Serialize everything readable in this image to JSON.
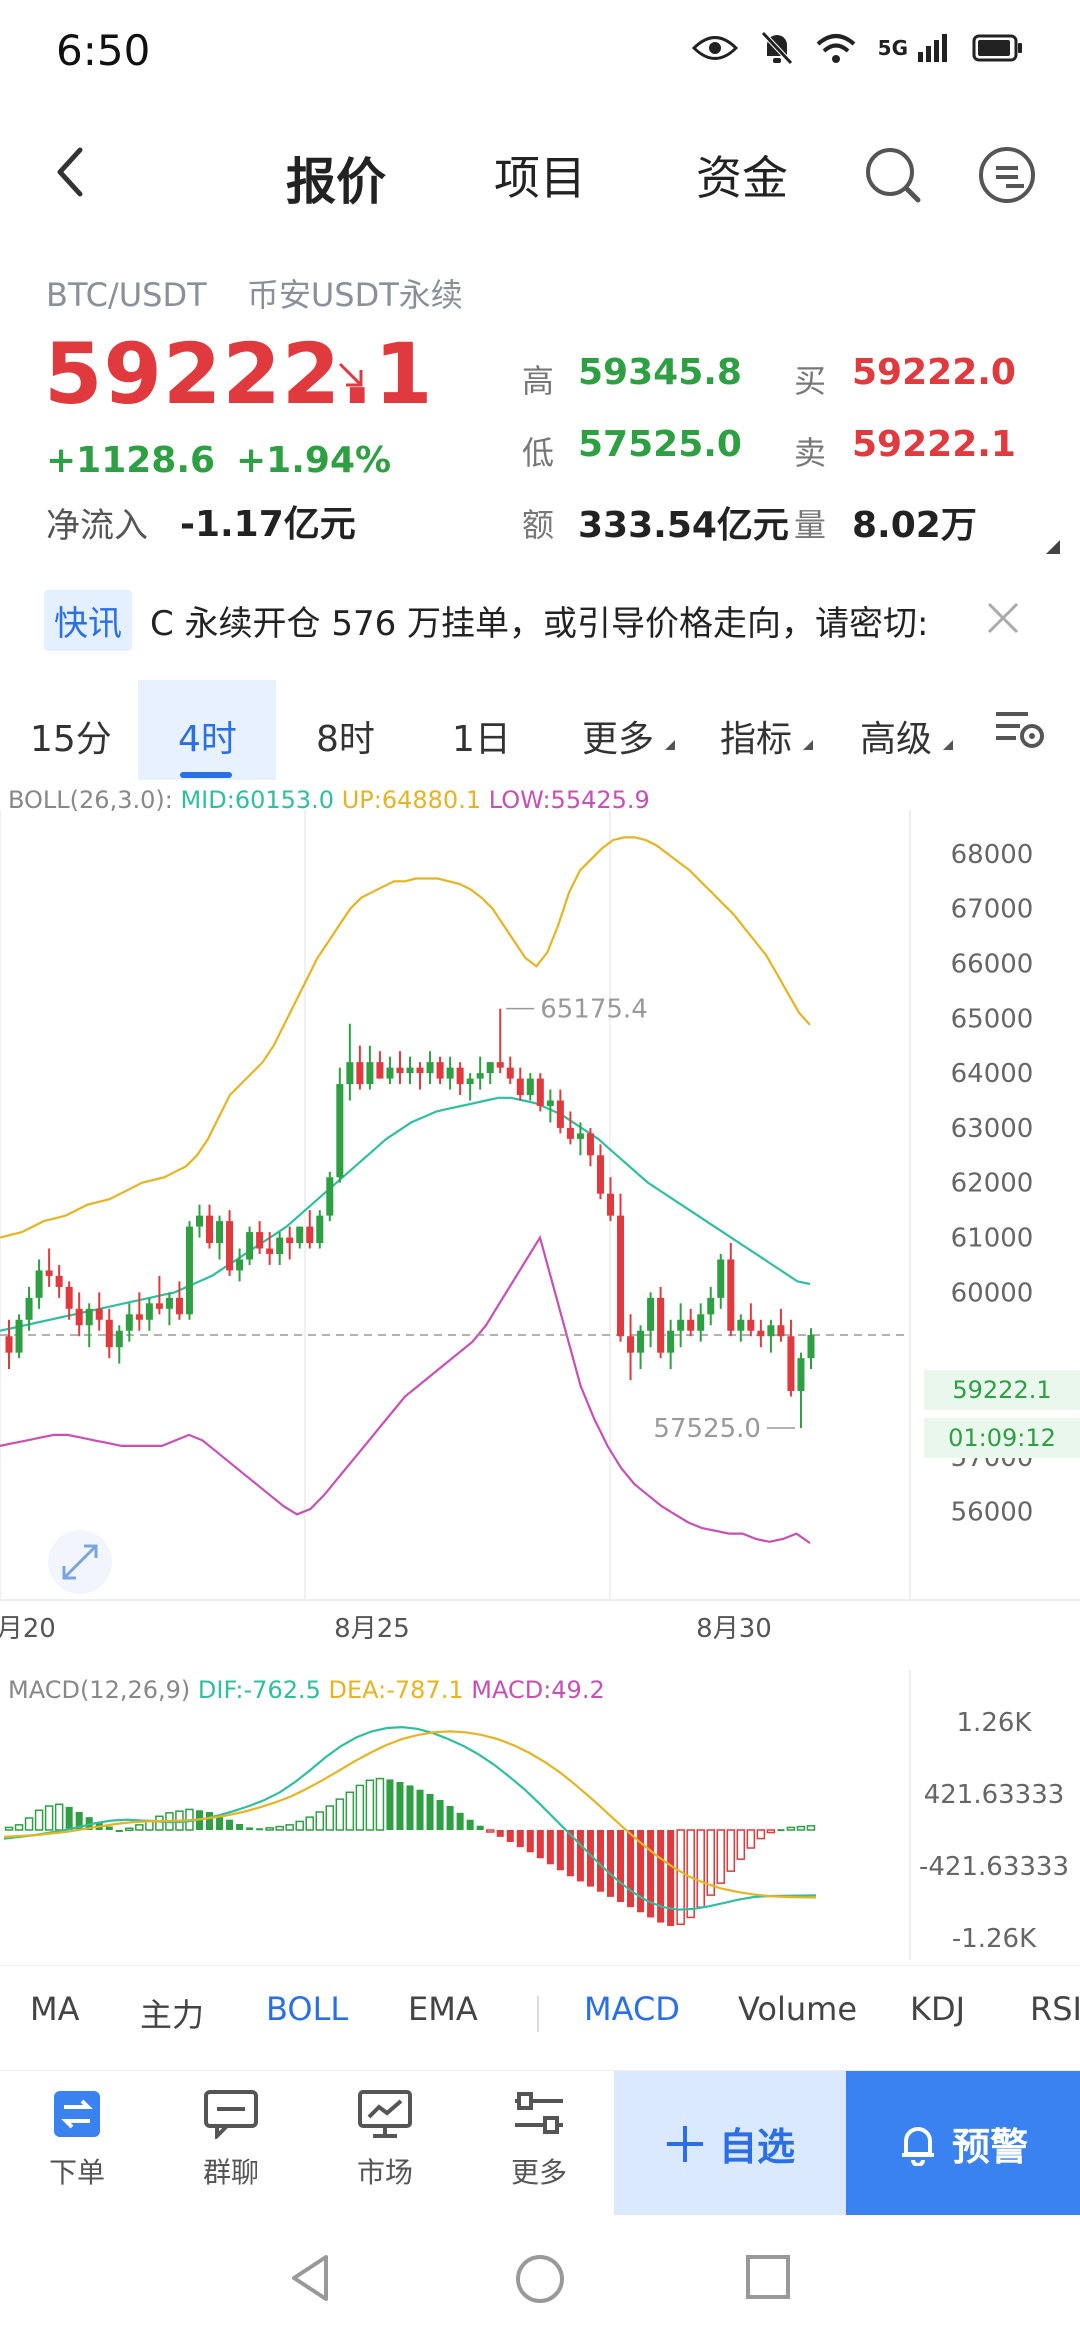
{
  "status_bar": {
    "time": "6:50",
    "network": "5G"
  },
  "nav": {
    "tabs": [
      "报价",
      "项目",
      "资金"
    ],
    "active_tab": 0
  },
  "ticker": {
    "pair": "BTC/USDT",
    "market": "币安USDT永续",
    "price": "59222.1",
    "change": "+1128.6",
    "change_pct": "+1.94%",
    "netflow_label": "净流入",
    "netflow_value": "-1.17亿元"
  },
  "stats": [
    {
      "label": "高",
      "value": "59345.8",
      "color": "green"
    },
    {
      "label": "买",
      "value": "59222.0",
      "color": "red"
    },
    {
      "label": "低",
      "value": "57525.0",
      "color": "green"
    },
    {
      "label": "卖",
      "value": "59222.1",
      "color": "red"
    },
    {
      "label": "额",
      "value": "333.54亿元",
      "color": "dark"
    },
    {
      "label": "量",
      "value": "8.02万",
      "color": "dark"
    }
  ],
  "news": {
    "tag": "快讯",
    "text": "C 永续开仓 576 万挂单，或引导价格走向，请密切:"
  },
  "timeframes": [
    "15分",
    "4时",
    "8时",
    "1日",
    "更多",
    "指标",
    "高级"
  ],
  "active_timeframe": 1,
  "boll_legend": {
    "name": "BOLL(26,3.0):",
    "mid": "MID:60153.0",
    "up": "UP:64880.1",
    "low": "LOW:55425.9"
  },
  "macd_legend": {
    "name": "MACD(12,26,9)",
    "dif": "DIF:-762.5",
    "dea": "DEA:-787.1",
    "macd": "MACD:49.2"
  },
  "current_price_tag": "59222.1",
  "countdown_tag": "01:09:12",
  "chart_data": [
    {
      "type": "candlestick",
      "title": "BTC/USDT 4时",
      "x_ticks": [
        "8月20",
        "8月25",
        "8月30"
      ],
      "y_ticks": [
        68000,
        67000,
        66000,
        65000,
        64000,
        63000,
        62000,
        61000,
        60000,
        57000,
        56000
      ],
      "ylim": [
        55300,
        68800
      ],
      "annotations": {
        "high": "65175.4",
        "low": "57525.0"
      },
      "current_price": 59222.1,
      "candles": [
        [
          59200,
          59500,
          58600,
          58900
        ],
        [
          58900,
          59600,
          58800,
          59500
        ],
        [
          59500,
          60100,
          59300,
          59900
        ],
        [
          59900,
          60600,
          59700,
          60400
        ],
        [
          60400,
          60800,
          60100,
          60300
        ],
        [
          60300,
          60500,
          59900,
          60100
        ],
        [
          60100,
          60200,
          59500,
          59700
        ],
        [
          59700,
          60000,
          59200,
          59400
        ],
        [
          59400,
          59800,
          59000,
          59700
        ],
        [
          59700,
          60000,
          59300,
          59500
        ],
        [
          59500,
          59700,
          58800,
          59000
        ],
        [
          59000,
          59400,
          58700,
          59300
        ],
        [
          59300,
          59800,
          59100,
          59600
        ],
        [
          59600,
          60000,
          59300,
          59500
        ],
        [
          59500,
          59900,
          59300,
          59800
        ],
        [
          59800,
          60300,
          59600,
          59700
        ],
        [
          59700,
          60000,
          59400,
          59900
        ],
        [
          59900,
          60200,
          59500,
          59600
        ],
        [
          59600,
          61300,
          59500,
          61200
        ],
        [
          61200,
          61600,
          61000,
          61400
        ],
        [
          61400,
          61600,
          60800,
          60900
        ],
        [
          60900,
          61400,
          60600,
          61300
        ],
        [
          61300,
          61500,
          60300,
          60400
        ],
        [
          60400,
          60800,
          60200,
          60600
        ],
        [
          60600,
          61200,
          60500,
          61100
        ],
        [
          61100,
          61300,
          60700,
          60800
        ],
        [
          60800,
          61100,
          60500,
          60700
        ],
        [
          60700,
          61100,
          60500,
          61000
        ],
        [
          61000,
          61200,
          60600,
          60900
        ],
        [
          60900,
          61200,
          60800,
          61200
        ],
        [
          61200,
          61500,
          60800,
          60900
        ],
        [
          60900,
          61500,
          60800,
          61400
        ],
        [
          61400,
          62200,
          61300,
          62100
        ],
        [
          62100,
          64100,
          62000,
          63800
        ],
        [
          63800,
          64900,
          63500,
          64200
        ],
        [
          64200,
          64500,
          63700,
          63800
        ],
        [
          63800,
          64500,
          63700,
          64200
        ],
        [
          64200,
          64400,
          63900,
          63900
        ],
        [
          63900,
          64300,
          63800,
          64100
        ],
        [
          64100,
          64400,
          63800,
          64000
        ],
        [
          64000,
          64300,
          63800,
          64100
        ],
        [
          64100,
          64200,
          63700,
          64000
        ],
        [
          64000,
          64400,
          63800,
          64200
        ],
        [
          64200,
          64300,
          63800,
          63900
        ],
        [
          63900,
          64300,
          63700,
          64100
        ],
        [
          64100,
          64200,
          63600,
          63800
        ],
        [
          63800,
          64000,
          63500,
          63900
        ],
        [
          63900,
          64300,
          63700,
          64000
        ],
        [
          64000,
          64200,
          63800,
          64200
        ],
        [
          64200,
          65175,
          64000,
          64100
        ],
        [
          64100,
          64300,
          63800,
          63900
        ],
        [
          63900,
          64100,
          63500,
          63600
        ],
        [
          63600,
          64000,
          63500,
          63900
        ],
        [
          63900,
          64000,
          63300,
          63400
        ],
        [
          63400,
          63700,
          63100,
          63500
        ],
        [
          63500,
          63700,
          62900,
          63000
        ],
        [
          63000,
          63300,
          62700,
          62800
        ],
        [
          62800,
          63100,
          62500,
          62900
        ],
        [
          62900,
          63000,
          62300,
          62500
        ],
        [
          62500,
          62700,
          61700,
          61800
        ],
        [
          61800,
          62100,
          61300,
          61400
        ],
        [
          61400,
          61800,
          59100,
          59200
        ],
        [
          59200,
          59600,
          58400,
          58900
        ],
        [
          58900,
          59400,
          58600,
          59300
        ],
        [
          59300,
          60000,
          59000,
          59900
        ],
        [
          59900,
          60100,
          58800,
          58900
        ],
        [
          58900,
          59500,
          58600,
          59300
        ],
        [
          59300,
          59800,
          59000,
          59500
        ],
        [
          59500,
          59700,
          59200,
          59300
        ],
        [
          59300,
          59800,
          59100,
          59600
        ],
        [
          59600,
          60100,
          59400,
          59900
        ],
        [
          59900,
          60700,
          59700,
          60600
        ],
        [
          60600,
          60900,
          59200,
          59300
        ],
        [
          59300,
          59600,
          59100,
          59500
        ],
        [
          59500,
          59800,
          59200,
          59300
        ],
        [
          59300,
          59500,
          59000,
          59200
        ],
        [
          59200,
          59500,
          58900,
          59400
        ],
        [
          59400,
          59700,
          59100,
          59200
        ],
        [
          59200,
          59500,
          58100,
          58200
        ],
        [
          58200,
          58900,
          57525,
          58800
        ],
        [
          58800,
          59346,
          58600,
          59222
        ]
      ],
      "boll_up": [
        61000,
        61050,
        61100,
        61200,
        61300,
        61350,
        61400,
        61500,
        61600,
        61650,
        61700,
        61800,
        61900,
        62000,
        62050,
        62100,
        62200,
        62300,
        62500,
        62800,
        63200,
        63600,
        63800,
        64000,
        64200,
        64500,
        64900,
        65300,
        65700,
        66100,
        66400,
        66700,
        67000,
        67200,
        67300,
        67400,
        67500,
        67500,
        67550,
        67550,
        67550,
        67500,
        67450,
        67350,
        67200,
        67000,
        66700,
        66400,
        66100,
        65950,
        66200,
        66700,
        67300,
        67700,
        67900,
        68100,
        68250,
        68300,
        68300,
        68250,
        68150,
        68000,
        67850,
        67700,
        67500,
        67300,
        67100,
        66900,
        66650,
        66400,
        66150,
        65800,
        65450,
        65100,
        64880
      ],
      "boll_mid": [
        59300,
        59350,
        59400,
        59450,
        59500,
        59550,
        59600,
        59650,
        59700,
        59750,
        59800,
        59850,
        59900,
        59950,
        60000,
        60100,
        60200,
        60300,
        60450,
        60600,
        60750,
        60900,
        61050,
        61200,
        61400,
        61600,
        61800,
        62000,
        62200,
        62400,
        62600,
        62800,
        62950,
        63100,
        63200,
        63300,
        63350,
        63400,
        63450,
        63500,
        63550,
        63550,
        63500,
        63450,
        63350,
        63250,
        63100,
        62950,
        62800,
        62600,
        62400,
        62200,
        62000,
        61850,
        61700,
        61550,
        61400,
        61250,
        61100,
        60950,
        60800,
        60650,
        60500,
        60350,
        60200,
        60153
      ],
      "boll_low": [
        57200,
        57250,
        57300,
        57350,
        57400,
        57400,
        57350,
        57300,
        57250,
        57200,
        57200,
        57200,
        57200,
        57300,
        57400,
        57300,
        57100,
        56900,
        56700,
        56500,
        56300,
        56100,
        55950,
        56050,
        56300,
        56600,
        56900,
        57200,
        57500,
        57800,
        58100,
        58300,
        58500,
        58700,
        58900,
        59100,
        59400,
        59800,
        60200,
        60600,
        61000,
        60100,
        59200,
        58300,
        57700,
        57200,
        56800,
        56500,
        56300,
        56100,
        55950,
        55800,
        55700,
        55650,
        55600,
        55600,
        55500,
        55450,
        55500,
        55600,
        55425
      ],
      "x": [
        "8月20",
        "8月25",
        "8月30"
      ]
    },
    {
      "type": "bar",
      "title": "MACD(12,26,9)",
      "y_ticks": [
        "1.26K",
        "421.63333",
        "-421.63333",
        "-1.26K"
      ],
      "ylim": [
        -1400,
        1400
      ],
      "series": [
        {
          "name": "MACD",
          "values": [
            30,
            60,
            140,
            230,
            280,
            300,
            270,
            210,
            150,
            90,
            40,
            0,
            20,
            60,
            110,
            160,
            200,
            220,
            240,
            230,
            210,
            170,
            120,
            70,
            30,
            20,
            25,
            40,
            60,
            100,
            150,
            210,
            280,
            360,
            440,
            520,
            580,
            600,
            590,
            560,
            520,
            470,
            420,
            350,
            280,
            200,
            120,
            50,
            -20,
            -80,
            -140,
            -200,
            -260,
            -330,
            -400,
            -470,
            -540,
            -600,
            -660,
            -720,
            -780,
            -840,
            -900,
            -960,
            -1020,
            -1080,
            -1120,
            -1100,
            -1020,
            -900,
            -760,
            -620,
            -480,
            -340,
            -210,
            -100,
            -30,
            10,
            30,
            40,
            49
          ]
        },
        {
          "name": "DIF",
          "values": [
            -100,
            -80,
            -60,
            -30,
            0,
            40,
            80,
            110,
            120,
            110,
            100,
            90,
            100,
            130,
            170,
            220,
            280,
            350,
            440,
            560,
            700,
            850,
            980,
            1080,
            1150,
            1190,
            1200,
            1180,
            1130,
            1060,
            980,
            880,
            760,
            620,
            470,
            300,
            120,
            -60,
            -240,
            -420,
            -580,
            -720,
            -830,
            -900,
            -930,
            -920,
            -890,
            -850,
            -810,
            -780,
            -770,
            -768,
            -765,
            -762
          ]
        },
        {
          "name": "DEA",
          "values": [
            -80,
            -70,
            -60,
            -40,
            -20,
            10,
            40,
            70,
            90,
            100,
            105,
            110,
            120,
            140,
            170,
            210,
            260,
            320,
            390,
            480,
            580,
            690,
            800,
            900,
            990,
            1060,
            1110,
            1140,
            1150,
            1140,
            1110,
            1060,
            990,
            900,
            790,
            660,
            510,
            350,
            180,
            10,
            -150,
            -300,
            -430,
            -540,
            -620,
            -680,
            -720,
            -750,
            -770,
            -780,
            -785,
            -787
          ]
        }
      ]
    }
  ],
  "indicators": [
    "MA",
    "主力",
    "BOLL",
    "EMA",
    "MACD",
    "Volume",
    "KDJ",
    "RSI"
  ],
  "active_indicators": [
    "BOLL",
    "MACD"
  ],
  "bottom_nav": {
    "items": [
      "下单",
      "群聊",
      "市场",
      "更多"
    ],
    "favorite_label": "自选",
    "alert_label": "预警"
  },
  "colors": {
    "up": "#2ea043",
    "down": "#e0393e",
    "accent": "#2b6fe8",
    "boll_mid": "#2fbfa0",
    "boll_up": "#e6b422",
    "boll_low": "#c94fb5"
  }
}
